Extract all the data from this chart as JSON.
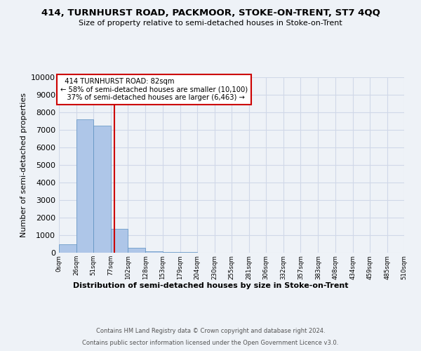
{
  "title_line1": "414, TURNHURST ROAD, PACKMOOR, STOKE-ON-TRENT, ST7 4QQ",
  "title_line2": "Size of property relative to semi-detached houses in Stoke-on-Trent",
  "xlabel": "Distribution of semi-detached houses by size in Stoke-on-Trent",
  "ylabel": "Number of semi-detached properties",
  "footer_line1": "Contains HM Land Registry data © Crown copyright and database right 2024.",
  "footer_line2": "Contains public sector information licensed under the Open Government Licence v3.0.",
  "property_label": "414 TURNHURST ROAD: 82sqm",
  "annotation_line2": "← 58% of semi-detached houses are smaller (10,100)",
  "annotation_line3": "   37% of semi-detached houses are larger (6,463) →",
  "property_size": 82,
  "bin_edges": [
    0,
    26,
    51,
    77,
    102,
    128,
    153,
    179,
    204,
    230,
    255,
    281,
    306,
    332,
    357,
    383,
    408,
    434,
    459,
    485,
    510
  ],
  "bar_heights": [
    500,
    7600,
    7250,
    1350,
    300,
    100,
    50,
    25,
    15,
    8,
    5,
    3,
    2,
    1,
    1,
    0,
    0,
    0,
    0,
    0
  ],
  "bar_color": "#aec6e8",
  "bar_edge_color": "#5a8fc0",
  "red_line_color": "#cc0000",
  "annotation_box_color": "#cc0000",
  "grid_color": "#d0d8e8",
  "ylim": [
    0,
    10000
  ],
  "yticks": [
    0,
    1000,
    2000,
    3000,
    4000,
    5000,
    6000,
    7000,
    8000,
    9000,
    10000
  ],
  "background_color": "#eef2f7"
}
